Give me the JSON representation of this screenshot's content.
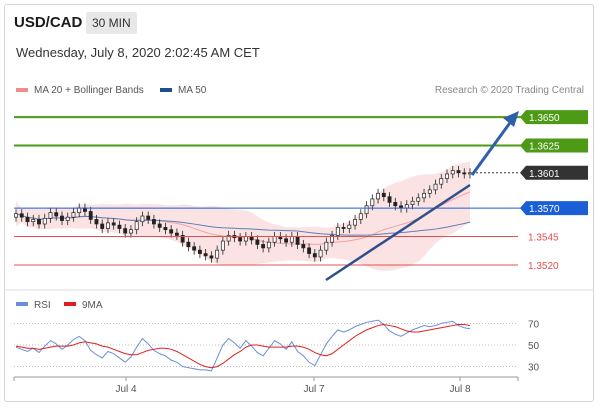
{
  "header": {
    "symbol": "USD/CAD",
    "interval": "30 MIN",
    "datetime": "Wednesday, July 8, 2020 2:02:45 AM CET"
  },
  "legend": {
    "ma20": "MA 20 + Bollinger Bands",
    "ma50": "MA 50",
    "ma20_color": "#f08b8b",
    "ma50_color": "#1f4e8c"
  },
  "credit": "Research © 2020 Trading Central",
  "rsi_legend": {
    "rsi": "RSI",
    "ma9": "9MA",
    "rsi_color": "#6a8fd6",
    "ma9_color": "#e02020"
  },
  "chart_data": {
    "type": "line",
    "price_axis": {
      "ylim": [
        1.3505,
        1.3665
      ]
    },
    "x_ticks": [
      "Jul 4",
      "Jul 7",
      "Jul 8"
    ],
    "levels": [
      {
        "value": 1.365,
        "label": "1.3650",
        "kind": "resistance",
        "color": "#4c9a16"
      },
      {
        "value": 1.3625,
        "label": "1.3625",
        "kind": "resistance",
        "color": "#4c9a16"
      },
      {
        "value": 1.3601,
        "label": "1.3601",
        "kind": "last",
        "color": "#333333"
      },
      {
        "value": 1.357,
        "label": "1.3570",
        "kind": "pivot",
        "color": "#1a5fd6"
      },
      {
        "value": 1.3545,
        "label": "1.3545",
        "kind": "support",
        "color": "#e05050"
      },
      {
        "value": 1.352,
        "label": "1.3520",
        "kind": "support",
        "color": "#e05050"
      }
    ],
    "close": [
      1.3565,
      1.3562,
      1.3558,
      1.356,
      1.3556,
      1.3561,
      1.3566,
      1.3563,
      1.3559,
      1.3562,
      1.3566,
      1.357,
      1.3567,
      1.356,
      1.3556,
      1.3552,
      1.3557,
      1.3555,
      1.3552,
      1.3548,
      1.3551,
      1.3558,
      1.3563,
      1.356,
      1.3556,
      1.3553,
      1.3551,
      1.3548,
      1.3546,
      1.354,
      1.3536,
      1.3533,
      1.353,
      1.3528,
      1.3526,
      1.3533,
      1.3541,
      1.3546,
      1.3544,
      1.3541,
      1.3545,
      1.3542,
      1.3538,
      1.3535,
      1.354,
      1.3545,
      1.3543,
      1.354,
      1.3545,
      1.3538,
      1.3535,
      1.353,
      1.3527,
      1.3533,
      1.354,
      1.3546,
      1.3553,
      1.3552,
      1.3555,
      1.356,
      1.3565,
      1.3572,
      1.3578,
      1.3583,
      1.358,
      1.3575,
      1.3572,
      1.357,
      1.3573,
      1.3576,
      1.3579,
      1.3583,
      1.3586,
      1.3591,
      1.3596,
      1.36,
      1.3603,
      1.3601,
      1.36,
      1.3601
    ],
    "rsi_axis": {
      "ylim": [
        25,
        75
      ],
      "ticks": [
        30,
        50,
        70
      ]
    },
    "rsi": [
      48,
      46,
      44,
      47,
      43,
      49,
      54,
      51,
      46,
      50,
      55,
      58,
      54,
      45,
      41,
      38,
      44,
      42,
      38,
      34,
      39,
      48,
      56,
      51,
      45,
      42,
      40,
      36,
      34,
      30,
      29,
      28,
      27,
      27,
      26,
      38,
      50,
      56,
      52,
      47,
      54,
      49,
      43,
      40,
      47,
      54,
      51,
      46,
      53,
      44,
      40,
      34,
      31,
      41,
      51,
      58,
      64,
      62,
      64,
      67,
      69,
      71,
      72,
      73,
      69,
      63,
      60,
      58,
      61,
      64,
      66,
      68,
      67,
      68,
      70,
      71,
      72,
      68,
      66,
      65
    ],
    "ma9": [
      49,
      48,
      47,
      47,
      46,
      47,
      48,
      49,
      49,
      49,
      50,
      52,
      53,
      52,
      51,
      49,
      48,
      46,
      44,
      42,
      41,
      41,
      43,
      45,
      46,
      47,
      47,
      46,
      44,
      41,
      38,
      35,
      32,
      30,
      29,
      30,
      33,
      37,
      41,
      44,
      48,
      50,
      50,
      49,
      48,
      48,
      48,
      48,
      49,
      49,
      48,
      46,
      43,
      41,
      40,
      42,
      46,
      50,
      54,
      58,
      61,
      64,
      66,
      68,
      69,
      68,
      67,
      65,
      63,
      62,
      62,
      63,
      64,
      65,
      66,
      67,
      68,
      69,
      69,
      68
    ]
  }
}
